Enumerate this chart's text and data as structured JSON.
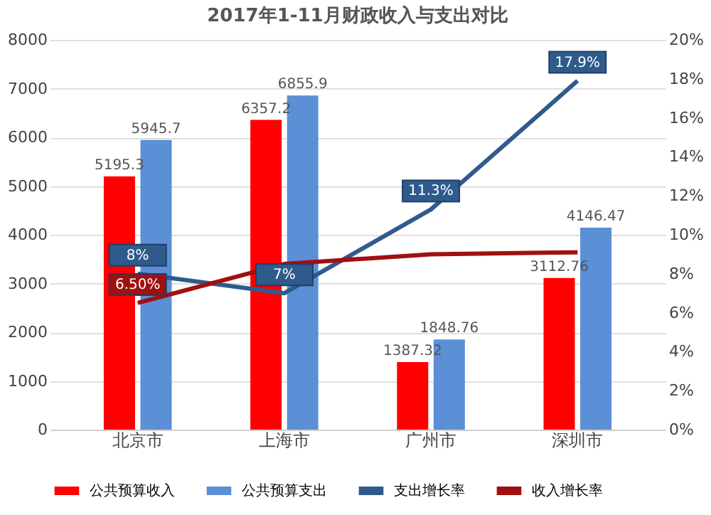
{
  "chart_data": {
    "type": "bar",
    "title": "2017年1-11月财政收入与支出对比",
    "categories": [
      "北京市",
      "上海市",
      "广州市",
      "深圳市"
    ],
    "series": [
      {
        "name": "公共预算收入",
        "color": "#ff0000",
        "values": [
          5195.3,
          6357.2,
          1387.32,
          3112.76
        ],
        "value_labels": [
          "5195.3",
          "6357.2",
          "1387.32",
          "3112.76"
        ]
      },
      {
        "name": "公共预算支出",
        "color": "#5b8fd6",
        "values": [
          5945.7,
          6855.9,
          1848.76,
          4146.47
        ],
        "value_labels": [
          "5945.7",
          "6855.9",
          "1848.76",
          "4146.47"
        ]
      },
      {
        "name": "支出增长率",
        "type": "line",
        "axis": "y2",
        "color": "#2f5b8c",
        "values": [
          8,
          7,
          11.3,
          17.9
        ],
        "value_labels": [
          "8%",
          "7%",
          "11.3%",
          "17.9%"
        ]
      },
      {
        "name": "收入增长率",
        "type": "line",
        "axis": "y2",
        "color": "#a01010",
        "values": [
          6.5,
          8.5,
          9.0,
          9.1
        ],
        "value_labels": [
          "6.50%",
          null,
          null,
          null
        ]
      }
    ],
    "ylim": [
      0,
      8000
    ],
    "yticks": [
      0,
      1000,
      2000,
      3000,
      4000,
      5000,
      6000,
      7000,
      8000
    ],
    "y2lim": [
      0,
      20
    ],
    "y2ticks": [
      {
        "value": 0,
        "label": "0%"
      },
      {
        "value": 2,
        "label": "2%"
      },
      {
        "value": 4,
        "label": "4%"
      },
      {
        "value": 6,
        "label": "6%"
      },
      {
        "value": 8,
        "label": "8%"
      },
      {
        "value": 10,
        "label": "10%"
      },
      {
        "value": 12,
        "label": "12%"
      },
      {
        "value": 14,
        "label": "14%"
      },
      {
        "value": 16,
        "label": "16%"
      },
      {
        "value": 18,
        "label": "18%"
      },
      {
        "value": 20,
        "label": "20%"
      }
    ],
    "grid": "y",
    "legend": "bottom",
    "marker": "none",
    "line_style": "solid"
  }
}
